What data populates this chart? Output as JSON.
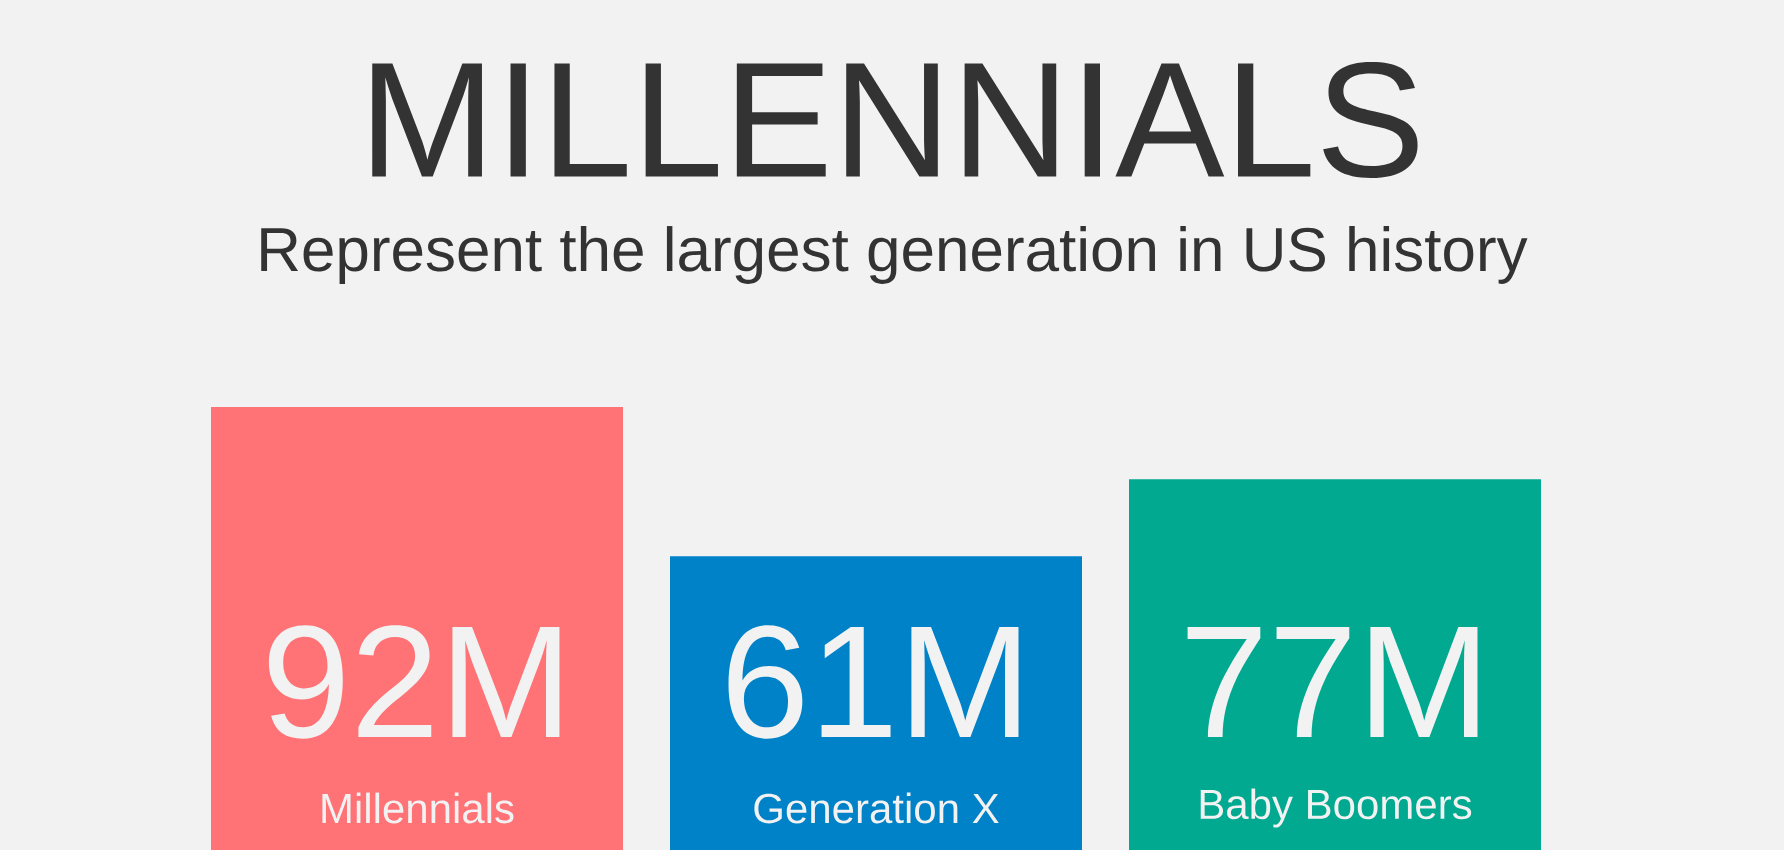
{
  "chart_data": {
    "type": "bar",
    "title": "MILLENNIALS",
    "subtitle": "Represent the largest generation in US history",
    "categories": [
      "Millennials",
      "Generation X",
      "Baby Boomers"
    ],
    "values": [
      92,
      61,
      77
    ],
    "colors": [
      "#ff7276",
      "#0082c8",
      "#00a98f"
    ],
    "value_labels": [
      "92M",
      "61M",
      "77M"
    ]
  }
}
